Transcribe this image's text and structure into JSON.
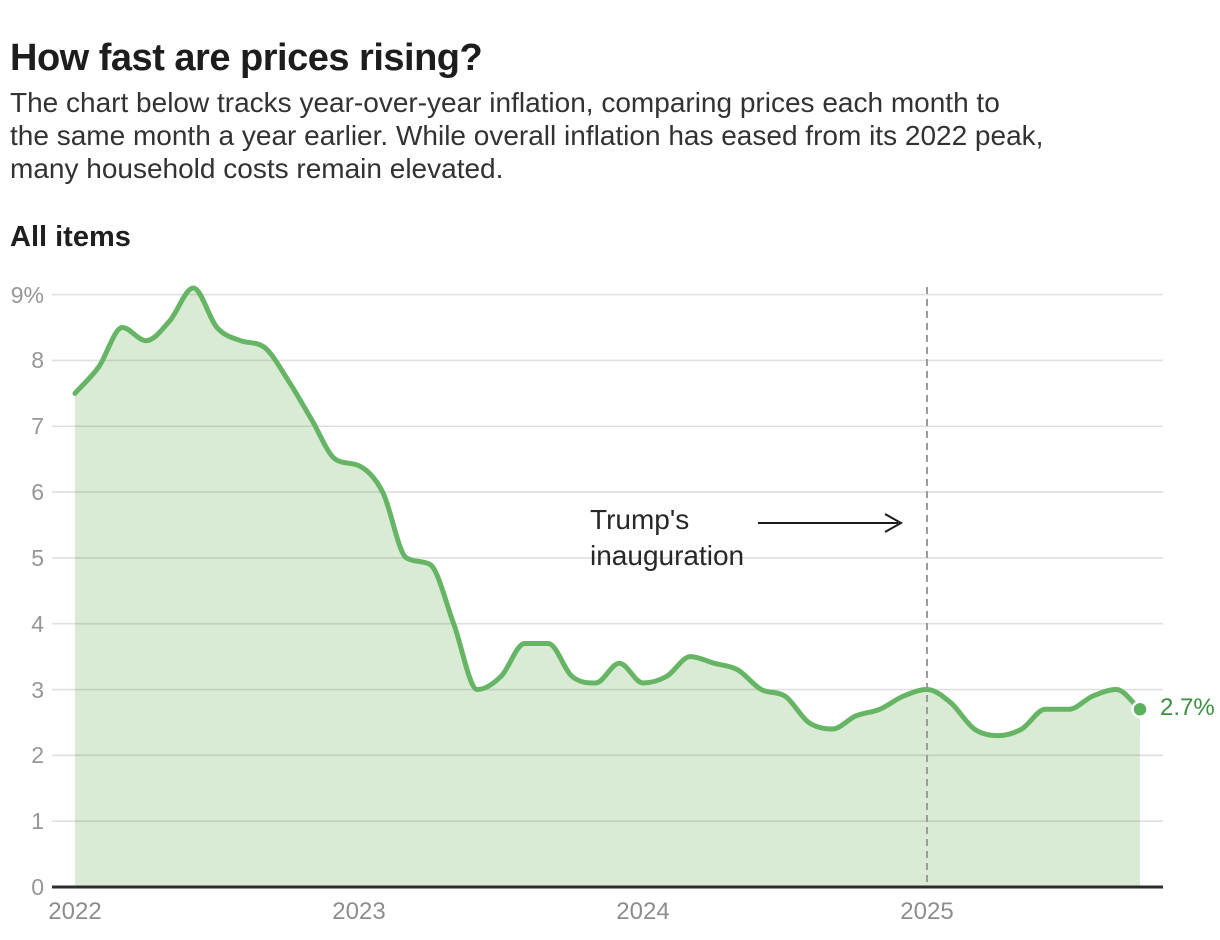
{
  "header": {
    "title": "How fast are prices rising?",
    "description_lines": [
      "The chart below tracks year-over-year inflation, comparing prices each month to",
      "the same month a year earlier. While overall inflation has eased from its 2022 peak,",
      "many household costs remain elevated."
    ]
  },
  "chart": {
    "series_label": "All items",
    "end_label": "2.7%"
  },
  "chart_data": {
    "type": "area",
    "title": "All items",
    "unit": "percent year-over-year",
    "ylim": [
      0,
      9
    ],
    "grid": true,
    "months": [
      "2022-01",
      "2022-02",
      "2022-03",
      "2022-04",
      "2022-05",
      "2022-06",
      "2022-07",
      "2022-08",
      "2022-09",
      "2022-10",
      "2022-11",
      "2022-12",
      "2023-01",
      "2023-02",
      "2023-03",
      "2023-04",
      "2023-05",
      "2023-06",
      "2023-07",
      "2023-08",
      "2023-09",
      "2023-10",
      "2023-11",
      "2023-12",
      "2024-01",
      "2024-02",
      "2024-03",
      "2024-04",
      "2024-05",
      "2024-06",
      "2024-07",
      "2024-08",
      "2024-09",
      "2024-10",
      "2024-11",
      "2024-12",
      "2025-01",
      "2025-02",
      "2025-03",
      "2025-04",
      "2025-05",
      "2025-06",
      "2025-07",
      "2025-08",
      "2025-09",
      "2025-10"
    ],
    "values": [
      7.5,
      7.9,
      8.5,
      8.3,
      8.6,
      9.1,
      8.5,
      8.3,
      8.2,
      7.7,
      7.1,
      6.5,
      6.4,
      6.0,
      5.0,
      4.9,
      4.0,
      3.0,
      3.2,
      3.7,
      3.7,
      3.2,
      3.1,
      3.4,
      3.1,
      3.2,
      3.5,
      3.4,
      3.3,
      3.0,
      2.9,
      2.5,
      2.4,
      2.6,
      2.7,
      2.9,
      3.0,
      2.8,
      2.4,
      2.3,
      2.4,
      2.7,
      2.7,
      2.9,
      3.0,
      2.7
    ],
    "last_value_label": "2.7%",
    "y_ticks": [
      {
        "value": 9,
        "label": "9%"
      },
      {
        "value": 8,
        "label": "8"
      },
      {
        "value": 7,
        "label": "7"
      },
      {
        "value": 6,
        "label": "6"
      },
      {
        "value": 5,
        "label": "5"
      },
      {
        "value": 4,
        "label": "4"
      },
      {
        "value": 3,
        "label": "3"
      },
      {
        "value": 2,
        "label": "2"
      },
      {
        "value": 1,
        "label": "1"
      },
      {
        "value": 0,
        "label": "0"
      }
    ],
    "x_ticks": [
      {
        "label": "2022",
        "month": 0
      },
      {
        "label": "2023",
        "month": 12
      },
      {
        "label": "2024",
        "month": 24
      },
      {
        "label": "2025",
        "month": 36
      }
    ],
    "annotation": {
      "lines": [
        "Trump's",
        "inauguration"
      ],
      "event": "Trump's inauguration",
      "month": 36
    },
    "colors": {
      "line": "#65b565",
      "fill": "#d6e9d0",
      "dot": "#5bb05b",
      "end_label": "#3e8e41",
      "grid": "#e2e2e2",
      "axis": "#2d2d2d",
      "dashed_rule": "#9c9c9c",
      "annotation_arrow": "#1a1a1a"
    },
    "legend": "none"
  }
}
